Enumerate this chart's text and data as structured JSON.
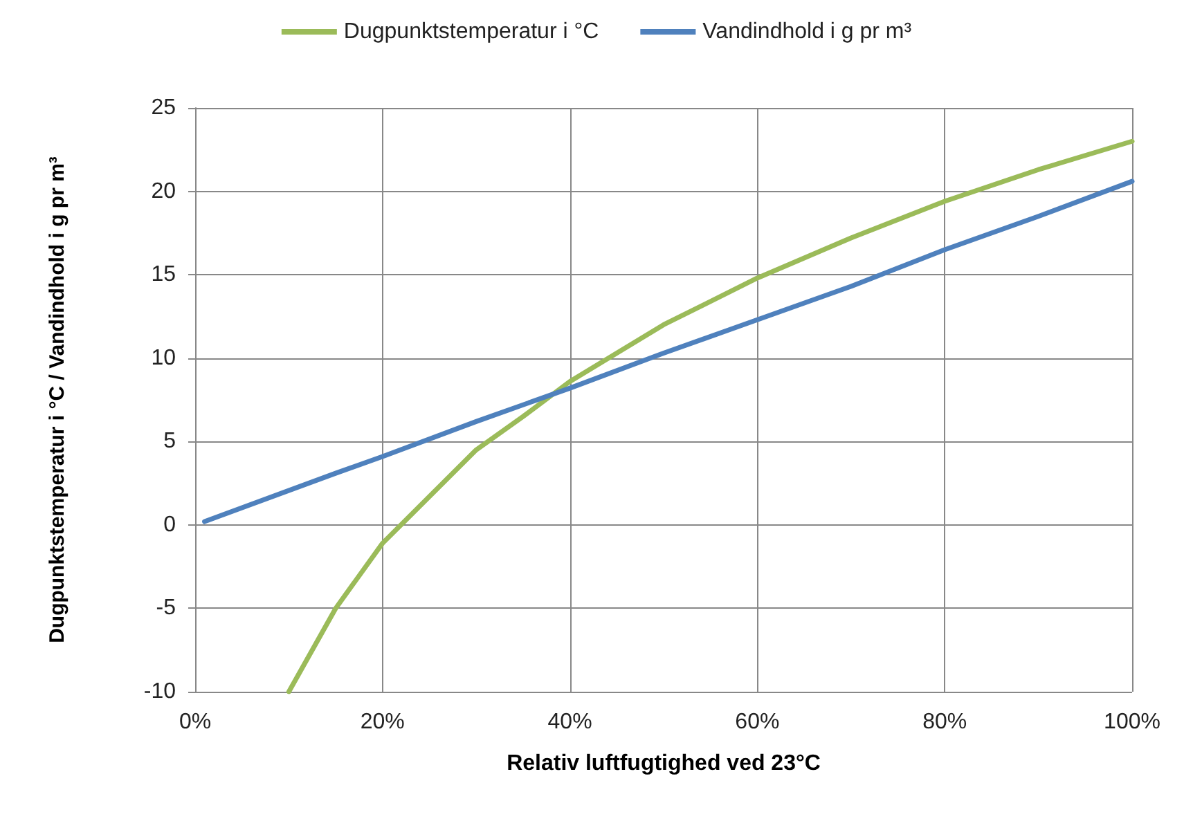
{
  "chart_data": {
    "type": "line",
    "xlabel": "Relativ luftfugtighed ved 23°C",
    "ylabel": "Dugpunktstemperatur i °C / Vandindhold i g pr m³",
    "xlim": [
      0,
      100
    ],
    "ylim": [
      -10,
      25
    ],
    "xticks": [
      {
        "value": 0,
        "label": "0%"
      },
      {
        "value": 20,
        "label": "20%"
      },
      {
        "value": 40,
        "label": "40%"
      },
      {
        "value": 60,
        "label": "60%"
      },
      {
        "value": 80,
        "label": "80%"
      },
      {
        "value": 100,
        "label": "100%"
      }
    ],
    "yticks": [
      -10,
      -5,
      0,
      5,
      10,
      15,
      20,
      25
    ],
    "grid": true,
    "legend": "top",
    "marker": "none",
    "line_style": "solid",
    "series": [
      {
        "name": "Dugpunktstemperatur i °C",
        "color": "#9bbb59",
        "x": [
          10,
          15,
          20,
          30,
          35,
          40,
          50,
          60,
          70,
          80,
          90,
          100
        ],
        "values": [
          -10,
          -5,
          -1.1,
          4.5,
          6.5,
          8.6,
          12,
          14.8,
          17.2,
          19.4,
          21.3,
          23
        ]
      },
      {
        "name": "Vandindhold i g pr m³",
        "color": "#4f81bd",
        "x": [
          1,
          15,
          20,
          30,
          40,
          50,
          60,
          70,
          80,
          90,
          100
        ],
        "values": [
          0.2,
          3.1,
          4.1,
          6.2,
          8.2,
          10.3,
          12.3,
          14.3,
          16.5,
          18.5,
          20.6
        ]
      }
    ]
  }
}
